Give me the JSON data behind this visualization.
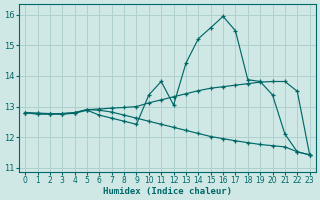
{
  "xlabel": "Humidex (Indice chaleur)",
  "background_color": "#d0e8e5",
  "grid_color": "#b0d0cd",
  "line_color": "#006868",
  "xlim": [
    -0.5,
    23.5
  ],
  "ylim": [
    10.85,
    16.35
  ],
  "yticks": [
    11,
    12,
    13,
    14,
    15,
    16
  ],
  "xticks": [
    0,
    1,
    2,
    3,
    4,
    5,
    6,
    7,
    8,
    9,
    10,
    11,
    12,
    13,
    14,
    15,
    16,
    17,
    18,
    19,
    20,
    21,
    22,
    23
  ],
  "line1_y": [
    12.8,
    12.75,
    12.75,
    12.75,
    12.78,
    12.88,
    12.72,
    12.62,
    12.52,
    12.42,
    13.38,
    13.82,
    13.05,
    14.42,
    15.22,
    15.58,
    15.95,
    15.48,
    13.88,
    13.82,
    13.38,
    12.1,
    11.52,
    11.42
  ],
  "line2_y": [
    12.8,
    12.78,
    12.77,
    12.77,
    12.8,
    12.9,
    12.92,
    12.95,
    12.97,
    13.0,
    13.12,
    13.22,
    13.32,
    13.42,
    13.52,
    13.6,
    13.65,
    13.7,
    13.75,
    13.8,
    13.82,
    13.82,
    13.5,
    11.42
  ],
  "line3_y": [
    12.8,
    12.78,
    12.77,
    12.77,
    12.8,
    12.9,
    12.88,
    12.82,
    12.72,
    12.62,
    12.52,
    12.42,
    12.32,
    12.22,
    12.12,
    12.02,
    11.95,
    11.88,
    11.82,
    11.76,
    11.72,
    11.68,
    11.52,
    11.42
  ]
}
